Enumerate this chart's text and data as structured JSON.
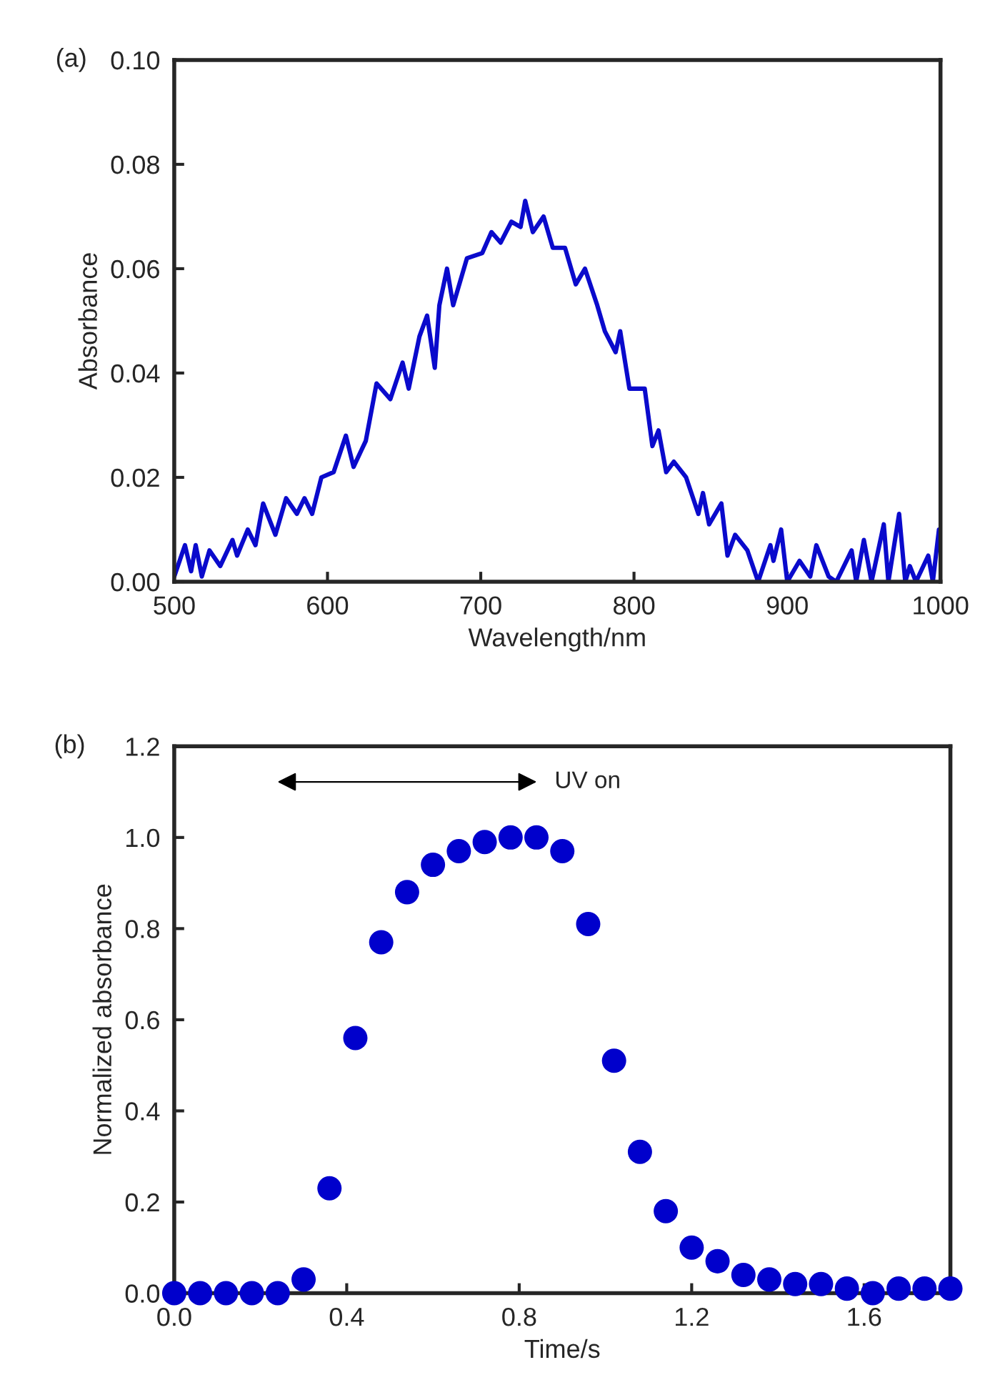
{
  "chart_data": [
    {
      "type": "line",
      "xlabel": "Wavelength/nm",
      "ylabel": "Absorbance",
      "annotations": [
        "(a)"
      ],
      "series": [
        {
          "color": "#0a0acc",
          "x": [
            500,
            507,
            511,
            514,
            518,
            523,
            530,
            538,
            541,
            548,
            553,
            558,
            566,
            573,
            580,
            585,
            590,
            596,
            604,
            612,
            617,
            625,
            632,
            641,
            649,
            653,
            660,
            665,
            670,
            673,
            678,
            682,
            691,
            701,
            707,
            713,
            720,
            726,
            729,
            734,
            741,
            747,
            755,
            762,
            768,
            776,
            781,
            788,
            791,
            797,
            807,
            812,
            816,
            821,
            826,
            834,
            842,
            845,
            849,
            857,
            861,
            866,
            874,
            881,
            889,
            891,
            896,
            900,
            908,
            915,
            919,
            927,
            932,
            942,
            945,
            950,
            955,
            963,
            966,
            973,
            977,
            980,
            984,
            992,
            995,
            999
          ],
          "values": [
            0.001,
            0.007,
            0.002,
            0.007,
            0.001,
            0.006,
            0.003,
            0.008,
            0.005,
            0.01,
            0.007,
            0.015,
            0.009,
            0.016,
            0.013,
            0.016,
            0.013,
            0.02,
            0.021,
            0.028,
            0.022,
            0.027,
            0.038,
            0.035,
            0.042,
            0.037,
            0.047,
            0.051,
            0.041,
            0.053,
            0.06,
            0.053,
            0.062,
            0.063,
            0.067,
            0.065,
            0.069,
            0.068,
            0.073,
            0.067,
            0.07,
            0.064,
            0.064,
            0.057,
            0.06,
            0.053,
            0.048,
            0.044,
            0.048,
            0.037,
            0.037,
            0.026,
            0.029,
            0.021,
            0.023,
            0.02,
            0.013,
            0.017,
            0.011,
            0.015,
            0.005,
            0.009,
            0.006,
            0.0,
            0.007,
            0.004,
            0.01,
            0.0,
            0.004,
            0.001,
            0.007,
            0.001,
            0.0,
            0.006,
            0.0,
            0.008,
            0.0,
            0.011,
            0.0,
            0.013,
            0.0,
            0.003,
            0.0,
            0.005,
            0.0,
            0.01
          ]
        }
      ],
      "xlim": [
        500,
        1000
      ],
      "xticks": [
        500,
        600,
        700,
        800,
        900,
        1000
      ],
      "ylim": [
        0,
        0.1
      ],
      "yticks": [
        {
          "value": 0,
          "label": "0.00"
        },
        {
          "value": 0.02,
          "label": "0.02"
        },
        {
          "value": 0.04,
          "label": "0.04"
        },
        {
          "value": 0.06,
          "label": "0.06"
        },
        {
          "value": 0.08,
          "label": "0.08"
        },
        {
          "value": 0.1,
          "label": "0.10"
        }
      ],
      "grid": false,
      "legend": false,
      "marker": "none",
      "line_style": "solid"
    },
    {
      "type": "scatter",
      "xlabel": "Time/s",
      "ylabel": "Normalized absorbance",
      "annotations": [
        "(b)",
        "UV on"
      ],
      "x": [
        0,
        0.06,
        0.12,
        0.18,
        0.24,
        0.3,
        0.36,
        0.42,
        0.48,
        0.54,
        0.6,
        0.66,
        0.72,
        0.78,
        0.84,
        0.9,
        0.96,
        1.02,
        1.08,
        1.14,
        1.2,
        1.26,
        1.32,
        1.38,
        1.44,
        1.5,
        1.56,
        1.62,
        1.68,
        1.74,
        1.8
      ],
      "series": [
        {
          "color": "#0000cc",
          "values": [
            0.0,
            0.0,
            0.0,
            0.0,
            0.0,
            0.03,
            0.23,
            0.56,
            0.77,
            0.88,
            0.94,
            0.97,
            0.99,
            1.0,
            1.0,
            0.97,
            0.81,
            0.51,
            0.31,
            0.18,
            0.1,
            0.07,
            0.04,
            0.03,
            0.02,
            0.02,
            0.01,
            0.0,
            0.01,
            0.01,
            0.01
          ]
        }
      ],
      "xlim": [
        0,
        1.8
      ],
      "xticks": [
        {
          "value": 0,
          "label": "0.0"
        },
        {
          "value": 0.4,
          "label": "0.4"
        },
        {
          "value": 0.8,
          "label": "0.8"
        },
        {
          "value": 1.2,
          "label": "1.2"
        },
        {
          "value": 1.6,
          "label": "1.6"
        }
      ],
      "ylim": [
        0,
        1.2
      ],
      "yticks": [
        {
          "value": 0,
          "label": "0.0"
        },
        {
          "value": 0.2,
          "label": "0.2"
        },
        {
          "value": 0.4,
          "label": "0.4"
        },
        {
          "value": 0.6,
          "label": "0.6"
        },
        {
          "value": 0.8,
          "label": "0.8"
        },
        {
          "value": 1.0,
          "label": "1.0"
        },
        {
          "value": 1.2,
          "label": "1.2"
        }
      ],
      "grid": false,
      "legend": false,
      "marker": "circle"
    }
  ]
}
